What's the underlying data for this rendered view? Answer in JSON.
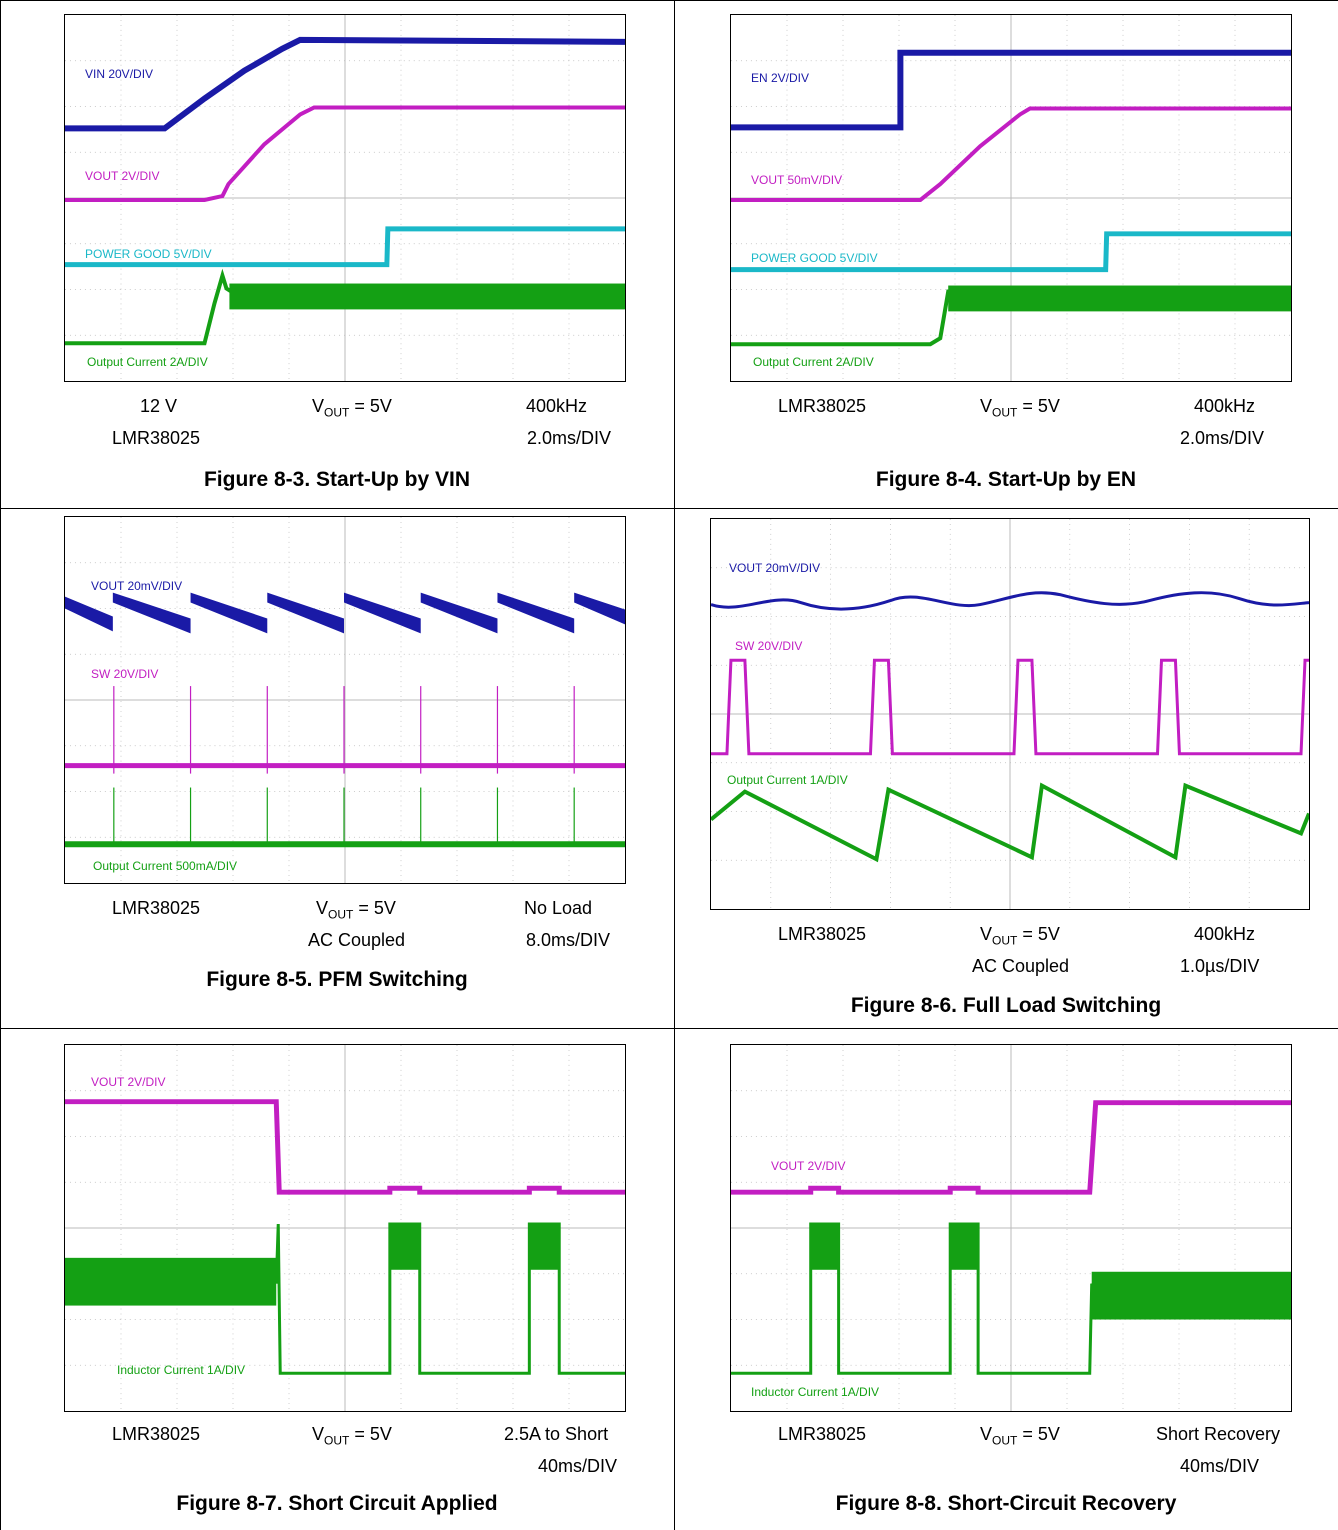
{
  "figures": [
    {
      "id": "fig-8-3",
      "caption": "Figure 8-3. Start-Up by VIN",
      "labels": [
        {
          "text": "VIN  20V/DIV",
          "color": "#1a1aa6"
        },
        {
          "text": "VOUT  2V/DIV",
          "color": "#c21ec2"
        },
        {
          "text": "POWER GOOD  5V/DIV",
          "color": "#1ab8c8"
        },
        {
          "text": "Output Current  2A/DIV",
          "color": "#14a014"
        }
      ],
      "params": {
        "left1": "12 V",
        "mid": "V",
        "mid_sub": "OUT",
        "mid_rest": " = 5V",
        "right1": "400kHz",
        "left2": "LMR38025",
        "mid2": "",
        "right2": "2.0ms/DIV"
      }
    },
    {
      "id": "fig-8-4",
      "caption": "Figure 8-4. Start-Up by EN",
      "labels": [
        {
          "text": "EN 2V/DIV",
          "color": "#1a1aa6"
        },
        {
          "text": "VOUT  50mV/DIV",
          "color": "#c21ec2"
        },
        {
          "text": "POWER GOOD  5V/DIV",
          "color": "#1ab8c8"
        },
        {
          "text": "Output Current  2A/DIV",
          "color": "#14a014"
        }
      ],
      "params": {
        "left1": "LMR38025",
        "mid": "V",
        "mid_sub": "OUT",
        "mid_rest": " = 5V",
        "right1": "400kHz",
        "left2": "",
        "mid2": "",
        "right2": "2.0ms/DIV"
      }
    },
    {
      "id": "fig-8-5",
      "caption": "Figure 8-5. PFM Switching",
      "labels": [
        {
          "text": "VOUT  20mV/DIV",
          "color": "#1a1aa6"
        },
        {
          "text": "SW  20V/DIV",
          "color": "#c21ec2"
        },
        {
          "text": "Output Current  500mA/DIV",
          "color": "#14a014"
        }
      ],
      "params": {
        "left1": "LMR38025",
        "mid": "V",
        "mid_sub": "OUT",
        "mid_rest": " = 5V",
        "right1": "No Load",
        "left2": "",
        "mid2": "AC Coupled",
        "right2": "8.0ms/DIV"
      }
    },
    {
      "id": "fig-8-6",
      "caption": "Figure 8-6. Full Load Switching",
      "labels": [
        {
          "text": "VOUT  20mV/DIV",
          "color": "#1a1aa6"
        },
        {
          "text": "SW  20V/DIV",
          "color": "#c21ec2"
        },
        {
          "text": "Output Current  1A/DIV",
          "color": "#14a014"
        }
      ],
      "params": {
        "left1": "LMR38025",
        "mid": "V",
        "mid_sub": "OUT",
        "mid_rest": " = 5V",
        "right1": "400kHz",
        "left2": "",
        "mid2": "AC Coupled",
        "right2": "1.0µs/DIV"
      }
    },
    {
      "id": "fig-8-7",
      "caption": "Figure 8-7. Short Circuit Applied",
      "labels": [
        {
          "text": "VOUT  2V/DIV",
          "color": "#c21ec2"
        },
        {
          "text": "Inductor Current  1A/DIV",
          "color": "#14a014"
        }
      ],
      "params": {
        "left1": "LMR38025",
        "mid": "V",
        "mid_sub": "OUT",
        "mid_rest": " = 5V",
        "right1": "2.5A to Short",
        "left2": "",
        "mid2": "",
        "right2": "40ms/DIV"
      }
    },
    {
      "id": "fig-8-8",
      "caption": "Figure 8-8. Short-Circuit Recovery",
      "labels": [
        {
          "text": "VOUT  2V/DIV",
          "color": "#c21ec2"
        },
        {
          "text": "Inductor Current  1A/DIV",
          "color": "#14a014"
        }
      ],
      "params": {
        "left1": "LMR38025",
        "mid": "V",
        "mid_sub": "OUT",
        "mid_rest": " = 5V",
        "right1": "Short Recovery",
        "left2": "",
        "mid2": "",
        "right2": "40ms/DIV"
      }
    }
  ]
}
